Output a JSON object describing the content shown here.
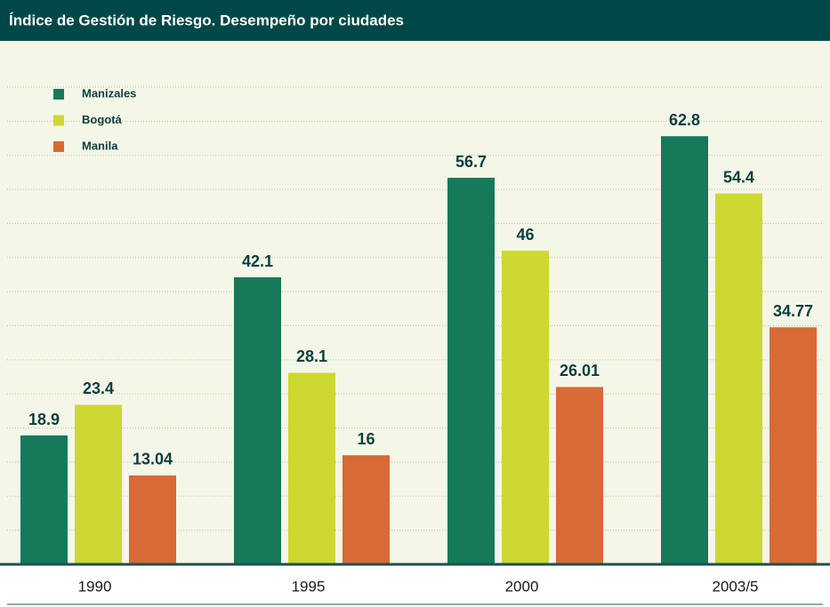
{
  "chart_data": {
    "type": "bar",
    "title": "Índice de Gestión de Riesgo. Desempeño por ciudades",
    "categories": [
      "1990",
      "1995",
      "2000",
      "2003/5"
    ],
    "series": [
      {
        "name": "Manizales",
        "color": "#157a5a",
        "values": [
          18.9,
          42.1,
          56.7,
          62.8
        ]
      },
      {
        "name": "Bogotá",
        "color": "#cdd832",
        "values": [
          23.4,
          28.1,
          46,
          54.4
        ]
      },
      {
        "name": "Manila",
        "color": "#d86a35",
        "values": [
          13.04,
          16,
          26.01,
          34.77
        ]
      }
    ],
    "ylim": [
      0,
      70
    ],
    "yticks": [
      0,
      5,
      10,
      15,
      20,
      25,
      30,
      35,
      40,
      45,
      50,
      55,
      60,
      65,
      70
    ],
    "grid": true,
    "legend": "top-left"
  }
}
